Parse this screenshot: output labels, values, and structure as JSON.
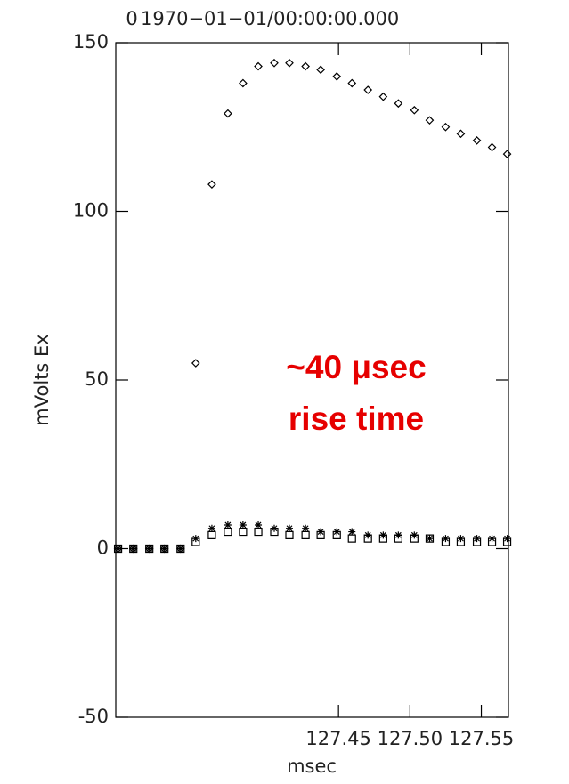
{
  "chart_data": {
    "type": "scatter",
    "title_left": "0",
    "title": "1970−01−01/00:00:00.000",
    "ylabel": "mVolts Ex",
    "xlabel": "msec",
    "annotation": [
      "~40 μsec",
      "rise time"
    ],
    "annotation_color": "#e60000",
    "xlim": [
      127.294,
      127.569
    ],
    "xticks": [
      127.45,
      {
        "value": 127.5,
        "label": "127.50"
      },
      127.55
    ],
    "ylim": [
      -50,
      150
    ],
    "yticks": [
      -50,
      0,
      50,
      100,
      150
    ],
    "x": [
      127.2956,
      127.3063,
      127.3175,
      127.3281,
      127.3394,
      127.35,
      127.3613,
      127.3725,
      127.3831,
      127.3938,
      127.405,
      127.4156,
      127.4269,
      127.4375,
      127.4488,
      127.4594,
      127.4706,
      127.4813,
      127.4919,
      127.5031,
      127.5138,
      127.525,
      127.5356,
      127.5469,
      127.5575,
      127.5681
    ],
    "series": [
      {
        "marker": "diamond",
        "color": "#000000",
        "values": [
          0,
          0,
          0,
          0,
          0,
          55,
          108,
          129,
          138,
          143,
          144,
          144,
          143,
          142,
          140,
          138,
          136,
          134,
          132,
          130,
          127,
          125,
          123,
          121,
          119,
          117
        ]
      },
      {
        "marker": "asterisk",
        "color": "#000000",
        "values": [
          0,
          0,
          0,
          0,
          0,
          3,
          6,
          7,
          7,
          7,
          6,
          6,
          6,
          5,
          5,
          5,
          4,
          4,
          4,
          4,
          3,
          3,
          3,
          3,
          3,
          3
        ]
      },
      {
        "marker": "square",
        "color": "#000000",
        "values": [
          0,
          0,
          0,
          0,
          0,
          2,
          4,
          5,
          5,
          5,
          5,
          4,
          4,
          4,
          4,
          3,
          3,
          3,
          3,
          3,
          3,
          2,
          2,
          2,
          2,
          2
        ]
      }
    ]
  }
}
